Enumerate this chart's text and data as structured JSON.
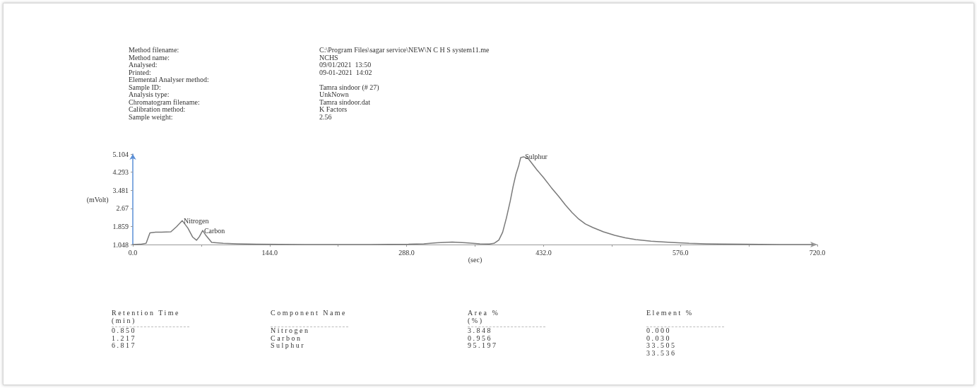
{
  "chart_data": {
    "type": "line",
    "xlabel": "(sec)",
    "ylabel": "(mVolt)",
    "x": [
      0,
      8,
      14,
      18,
      24,
      30,
      40,
      46,
      52,
      58,
      63,
      67,
      70,
      73.5,
      77,
      83,
      95,
      110,
      130,
      180,
      250,
      290,
      306,
      320,
      336,
      350,
      365,
      375,
      380,
      385,
      389,
      393,
      397,
      400,
      403,
      406,
      408,
      411,
      416,
      425,
      432,
      440,
      448,
      455,
      462,
      469,
      476,
      484,
      495,
      507,
      518,
      529,
      545,
      566,
      585,
      603,
      640,
      680,
      715
    ],
    "series": [
      {
        "color": "#7a7a7a",
        "values": [
          1.05,
          1.06,
          1.1,
          1.57,
          1.6,
          1.6,
          1.62,
          1.85,
          2.12,
          1.78,
          1.38,
          1.24,
          1.4,
          1.68,
          1.45,
          1.14,
          1.1,
          1.08,
          1.06,
          1.05,
          1.05,
          1.06,
          1.08,
          1.13,
          1.16,
          1.13,
          1.08,
          1.07,
          1.1,
          1.25,
          1.6,
          2.25,
          3.0,
          3.65,
          4.2,
          4.6,
          4.95,
          4.98,
          4.9,
          4.4,
          4.05,
          3.61,
          3.2,
          2.82,
          2.48,
          2.19,
          1.97,
          1.81,
          1.62,
          1.46,
          1.35,
          1.27,
          1.2,
          1.14,
          1.1,
          1.08,
          1.06,
          1.05,
          1.05
        ]
      }
    ],
    "xlim": [
      0,
      720
    ],
    "xticks": [
      {
        "value": 0,
        "label": "0.0"
      },
      {
        "value": 72,
        "label": null
      },
      {
        "value": 144,
        "label": "144.0"
      },
      {
        "value": 216,
        "label": null
      },
      {
        "value": 288,
        "label": "288.0"
      },
      {
        "value": 360,
        "label": null
      },
      {
        "value": 432,
        "label": "432.0"
      },
      {
        "value": 504,
        "label": null
      },
      {
        "value": 576,
        "label": "576.0"
      },
      {
        "value": 648,
        "label": null
      },
      {
        "value": 720,
        "label": "720.0"
      }
    ],
    "ylim": [
      1.048,
      5.104
    ],
    "yticks": [
      1.048,
      1.859,
      2.67,
      3.481,
      4.293,
      5.104
    ],
    "grid": false,
    "marker": "none",
    "line_style": "solid",
    "annotations": [
      "Method filename:",
      "Method name:",
      "Analysed:",
      "Printed:",
      "Elemental Analyser method:",
      "Sample ID:",
      "Analysis type:",
      "Chromatogram filename:",
      "Calibration method:",
      "Sample weight:",
      "C:\\Program Files\\sagar service\\NEW\\N C H S system11.me",
      "NCHS",
      "09/01/2021  13:50",
      "09-01-2021  14:02",
      "Tamra sindoor (# 27)",
      "UnkNown",
      "Tamra sindoor.dat",
      "K Factors",
      "2.56",
      {
        "text": "Nitrogen",
        "x": 52,
        "y": 2.12
      },
      {
        "text": "Carbon",
        "x": 73.5,
        "y": 1.68
      },
      {
        "text": "Sulphur",
        "x": 411,
        "y": 4.98
      },
      "Retention Time",
      "(min)",
      "0.850",
      "1.217",
      "6.817",
      "Component Name",
      "Nitrogen",
      "Carbon",
      "Sulphur",
      "Area %",
      "(%)",
      "3.848",
      "0.956",
      "95.197",
      "Element %",
      "0.000",
      "0.030",
      "33.505",
      "33.536"
    ]
  }
}
